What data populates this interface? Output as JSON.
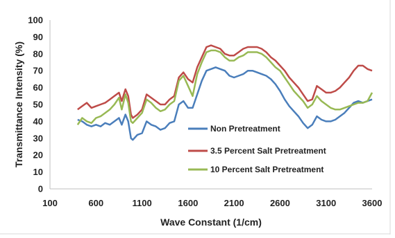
{
  "chart_data": {
    "type": "line",
    "title": "",
    "xlabel": "Wave Constant (1/cm)",
    "ylabel": "Transmittance Intensity (%)",
    "xlim": [
      100,
      3600
    ],
    "ylim": [
      0,
      100
    ],
    "x_ticks": [
      "100",
      "600",
      "1100",
      "1600",
      "2100",
      "2600",
      "3100",
      "3600"
    ],
    "y_ticks": [
      "0",
      "10",
      "20",
      "30",
      "40",
      "50",
      "60",
      "70",
      "80",
      "90",
      "100"
    ],
    "grid": false,
    "legend_position": "lower-center",
    "series": [
      {
        "name": "Non Pretreatment",
        "color": "#4a7ebb",
        "x": [
          400,
          450,
          500,
          550,
          600,
          650,
          700,
          750,
          800,
          850,
          880,
          920,
          950,
          980,
          1000,
          1050,
          1100,
          1150,
          1200,
          1250,
          1300,
          1350,
          1400,
          1450,
          1500,
          1550,
          1600,
          1650,
          1700,
          1750,
          1800,
          1850,
          1900,
          1950,
          2000,
          2050,
          2100,
          2150,
          2200,
          2250,
          2300,
          2350,
          2400,
          2450,
          2500,
          2550,
          2600,
          2650,
          2700,
          2750,
          2800,
          2850,
          2900,
          2950,
          3000,
          3050,
          3100,
          3150,
          3200,
          3250,
          3300,
          3350,
          3400,
          3450,
          3500,
          3550,
          3600
        ],
        "y": [
          41,
          40,
          38,
          37,
          38,
          37,
          39,
          38,
          40,
          42,
          38,
          44,
          40,
          30,
          29,
          32,
          33,
          40,
          38,
          37,
          35,
          36,
          39,
          40,
          50,
          52,
          48,
          48,
          56,
          64,
          70,
          71,
          72,
          71,
          70,
          67,
          66,
          67,
          68,
          70,
          70,
          69,
          68,
          67,
          65,
          62,
          58,
          53,
          49,
          46,
          43,
          39,
          36,
          38,
          43,
          41,
          40,
          40,
          41,
          43,
          45,
          48,
          51,
          52,
          51,
          52,
          53
        ]
      },
      {
        "name": "3.5 Percent Salt Pretreatment",
        "color": "#be4b48",
        "x": [
          400,
          450,
          500,
          550,
          600,
          650,
          700,
          750,
          800,
          850,
          880,
          920,
          950,
          980,
          1000,
          1050,
          1100,
          1150,
          1200,
          1250,
          1300,
          1350,
          1400,
          1450,
          1500,
          1550,
          1600,
          1650,
          1700,
          1750,
          1800,
          1850,
          1900,
          1950,
          2000,
          2050,
          2100,
          2150,
          2200,
          2250,
          2300,
          2350,
          2400,
          2450,
          2500,
          2550,
          2600,
          2650,
          2700,
          2750,
          2800,
          2850,
          2900,
          2950,
          3000,
          3050,
          3100,
          3150,
          3200,
          3250,
          3300,
          3350,
          3400,
          3450,
          3500,
          3550,
          3600
        ],
        "y": [
          47,
          49,
          51,
          48,
          49,
          50,
          51,
          53,
          55,
          57,
          52,
          59,
          55,
          44,
          42,
          44,
          47,
          56,
          54,
          52,
          50,
          50,
          53,
          55,
          66,
          69,
          65,
          63,
          72,
          78,
          84,
          85,
          84,
          83,
          80,
          79,
          79,
          81,
          83,
          84,
          84,
          84,
          83,
          81,
          78,
          76,
          73,
          70,
          66,
          63,
          60,
          56,
          52,
          53,
          61,
          59,
          57,
          57,
          58,
          60,
          63,
          66,
          70,
          73,
          73,
          71,
          70
        ]
      },
      {
        "name": "10 Percent Salt Pretreatment",
        "color": "#98b954",
        "x": [
          400,
          450,
          500,
          550,
          600,
          650,
          700,
          750,
          800,
          850,
          880,
          920,
          950,
          980,
          1000,
          1050,
          1100,
          1150,
          1200,
          1250,
          1300,
          1350,
          1400,
          1450,
          1500,
          1550,
          1600,
          1650,
          1700,
          1750,
          1800,
          1850,
          1900,
          1950,
          2000,
          2050,
          2100,
          2150,
          2200,
          2250,
          2300,
          2350,
          2400,
          2450,
          2500,
          2550,
          2600,
          2650,
          2700,
          2750,
          2800,
          2850,
          2900,
          2950,
          3000,
          3050,
          3100,
          3150,
          3200,
          3250,
          3300,
          3350,
          3400,
          3450,
          3500,
          3550,
          3600
        ],
        "y": [
          38,
          42,
          40,
          39,
          42,
          43,
          45,
          47,
          50,
          54,
          47,
          56,
          51,
          40,
          39,
          42,
          45,
          53,
          51,
          48,
          46,
          47,
          50,
          52,
          64,
          67,
          61,
          55,
          68,
          75,
          81,
          82,
          82,
          81,
          78,
          76,
          76,
          78,
          79,
          81,
          81,
          81,
          80,
          78,
          75,
          72,
          70,
          66,
          62,
          58,
          55,
          52,
          48,
          50,
          55,
          52,
          50,
          48,
          47,
          47,
          48,
          49,
          50,
          51,
          51,
          52,
          57
        ]
      }
    ]
  }
}
